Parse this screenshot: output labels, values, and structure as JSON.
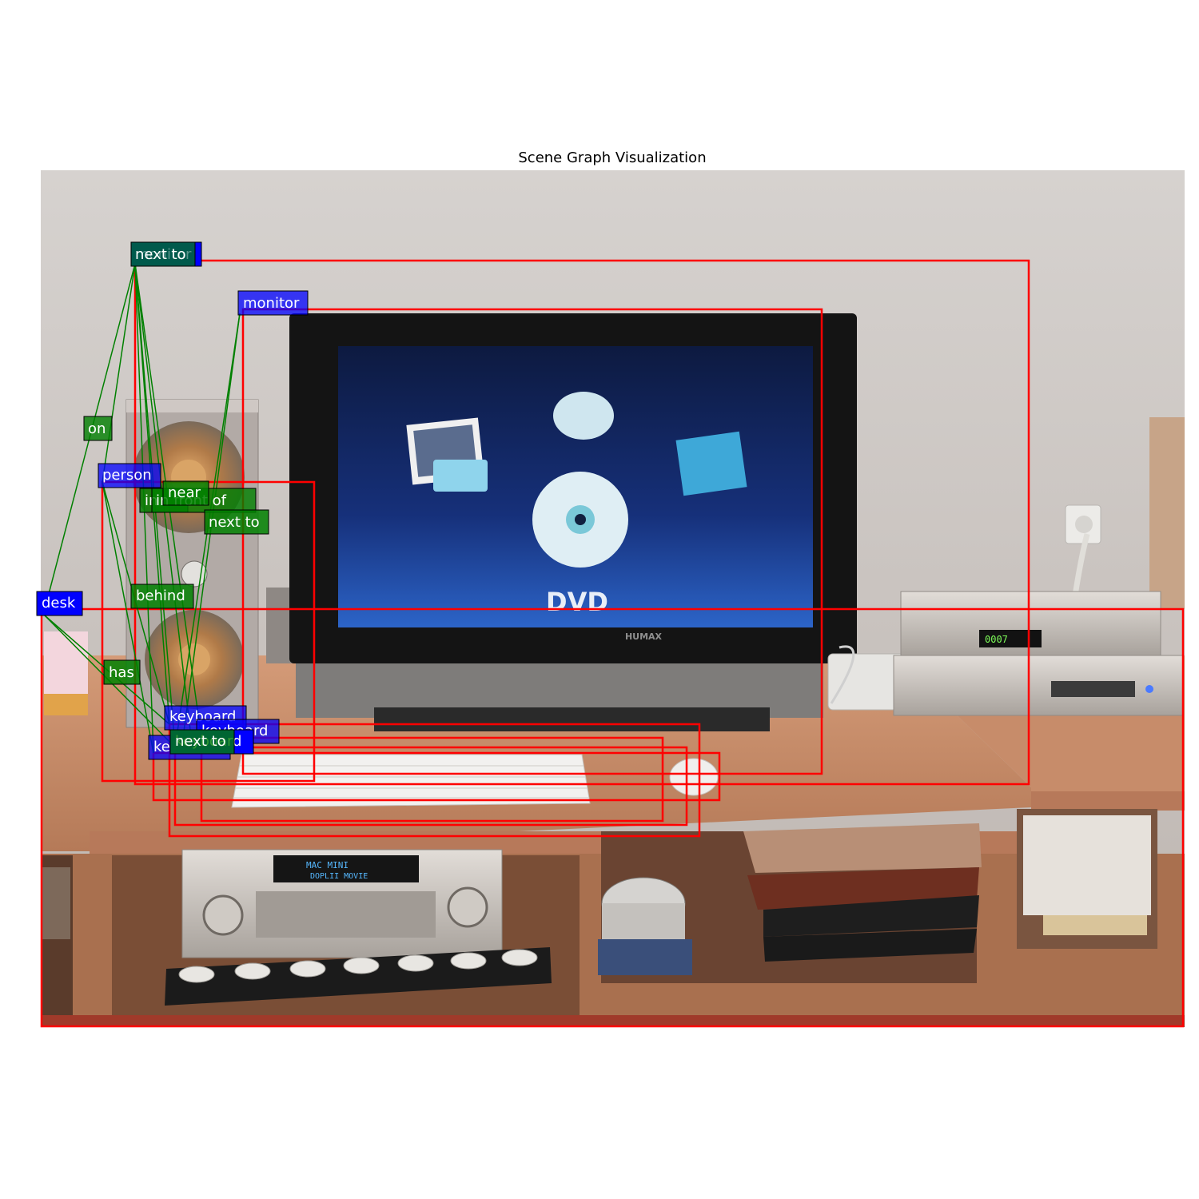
{
  "figure": {
    "title": "Scene Graph Visualization"
  },
  "colors": {
    "box": "#ff0000",
    "object_label": "#0000ff",
    "relation_label": "#008000",
    "edge": "#008000"
  },
  "scene_text": {
    "screen_caption": "DVD",
    "tv_brand": "HUMAX",
    "receiver_display": "MAC MINI",
    "receiver_mode": "DOPLII MOVIE",
    "dvr_display": "0007"
  },
  "objects": [
    {
      "id": "desk",
      "label": "desk"
    },
    {
      "id": "monitor",
      "label": "monitor"
    },
    {
      "id": "person",
      "label": "person"
    },
    {
      "id": "keyboard1",
      "label": "keyboard"
    },
    {
      "id": "keyboard2",
      "label": "keyboard"
    },
    {
      "id": "keyboard3",
      "label": "keyboard"
    },
    {
      "id": "keyboard4",
      "label": "keyboard"
    },
    {
      "id": "obj_top",
      "label": "monitor"
    }
  ],
  "relations": [
    {
      "id": "r_on",
      "label": "on"
    },
    {
      "id": "r_near",
      "label": "near"
    },
    {
      "id": "r_in",
      "label": "in"
    },
    {
      "id": "r_front",
      "label": "in front of"
    },
    {
      "id": "r_nextto1",
      "label": "next to"
    },
    {
      "id": "r_behind",
      "label": "behind"
    },
    {
      "id": "r_has",
      "label": "has"
    },
    {
      "id": "r_nextto2",
      "label": "next to"
    },
    {
      "id": "r_nextto_top",
      "label": "next to"
    }
  ]
}
